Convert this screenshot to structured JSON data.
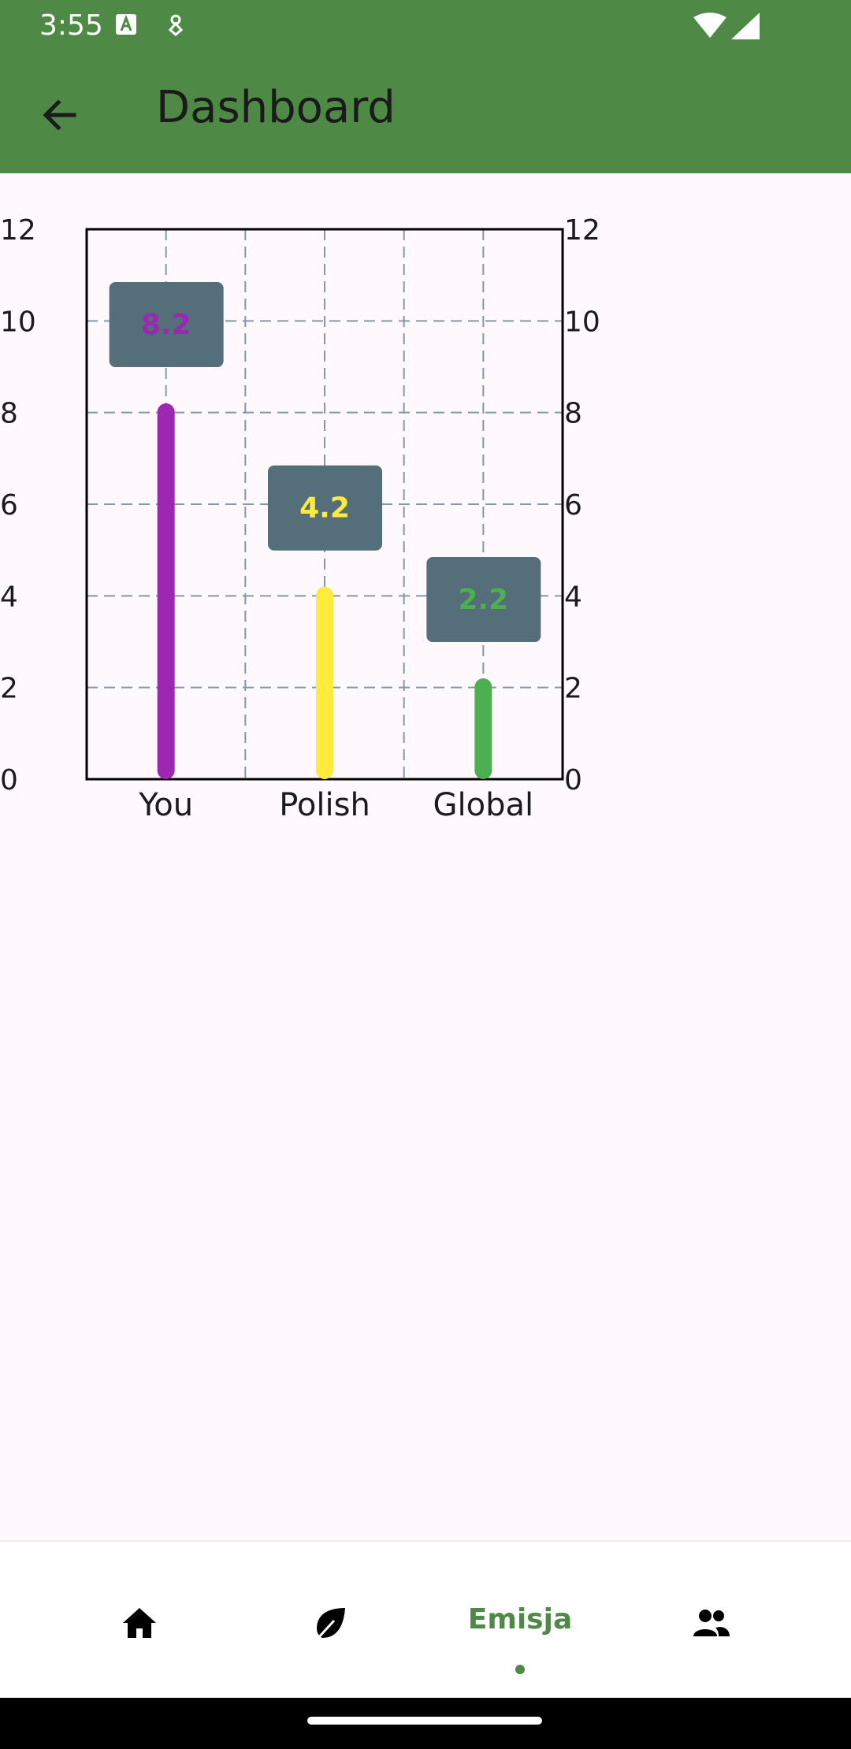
{
  "status_bar": {
    "time": "3:55",
    "icons": [
      "text-notification-icon",
      "notification-icon",
      "wifi-icon",
      "signal-icon"
    ]
  },
  "app_bar": {
    "title": "Dashboard",
    "back_icon": "arrow-back-icon",
    "background_color": "#4E8A45"
  },
  "chart_data": {
    "type": "bar",
    "categories": [
      "You",
      "Polish",
      "Global"
    ],
    "values": [
      8.2,
      4.2,
      2.2
    ],
    "value_labels": [
      "8.2",
      "4.2",
      "2.2"
    ],
    "colors": [
      "#9C27B0",
      "#FFEB3B",
      "#4CAF50"
    ],
    "label_box_color": "#546E7A",
    "title": "",
    "xlabel": "",
    "ylabel": "",
    "ylim": [
      0,
      12
    ],
    "yticks": [
      0,
      2,
      4,
      6,
      8,
      10,
      12
    ],
    "ytick_labels": [
      "0",
      "2",
      "4",
      "6",
      "8",
      "10",
      "12"
    ],
    "grid": true,
    "grid_style": "dashed",
    "y_axis_both_sides": true
  },
  "bottom_nav": {
    "items": [
      {
        "icon": "home-icon",
        "label": "",
        "active": false
      },
      {
        "icon": "leaf-icon",
        "label": "",
        "active": false
      },
      {
        "icon": "",
        "label": "Emisja",
        "active": true
      },
      {
        "icon": "people-icon",
        "label": "",
        "active": false
      }
    ],
    "active_color": "#4E8A45"
  }
}
